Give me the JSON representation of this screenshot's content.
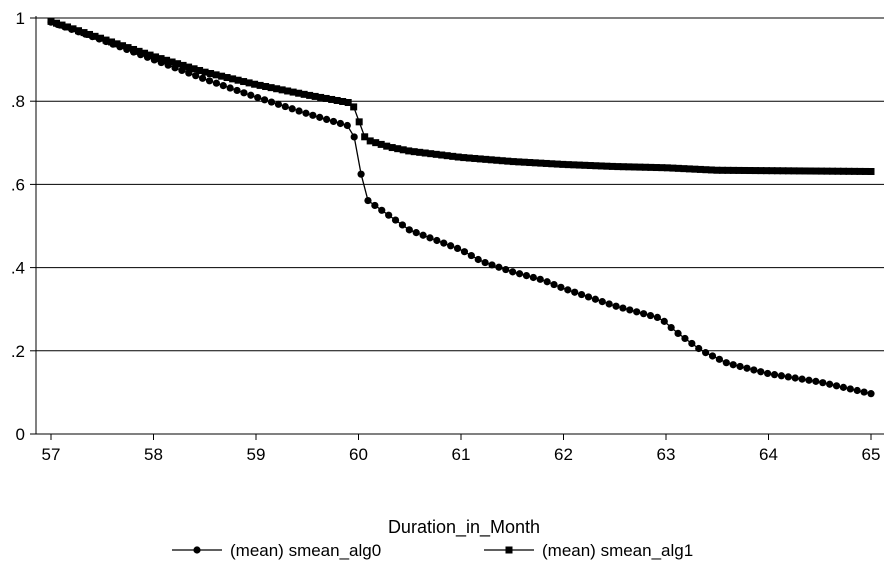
{
  "chart_data": {
    "type": "line",
    "xlabel": "Duration_in_Month",
    "ylabel": "",
    "xlim": [
      57,
      65
    ],
    "ylim": [
      0,
      1
    ],
    "xticks": [
      "57",
      "58",
      "59",
      "60",
      "61",
      "62",
      "63",
      "64",
      "65"
    ],
    "yticks": [
      "0",
      ".2",
      ".4",
      ".6",
      ".8",
      "1"
    ],
    "grid": "horizontal",
    "legend": "bottom",
    "colors": {
      "line": "#000000",
      "grid": "#000000",
      "background": "#ffffff"
    },
    "series": [
      {
        "name": "(mean) smean_alg0",
        "marker": "circle",
        "points": [
          [
            57.0,
            0.99
          ],
          [
            57.5,
            0.947
          ],
          [
            58.0,
            0.9
          ],
          [
            58.5,
            0.853
          ],
          [
            59.0,
            0.81
          ],
          [
            59.5,
            0.77
          ],
          [
            59.94,
            0.738
          ],
          [
            60.07,
            0.565
          ],
          [
            60.3,
            0.525
          ],
          [
            60.5,
            0.49
          ],
          [
            61.0,
            0.443
          ],
          [
            61.2,
            0.415
          ],
          [
            61.5,
            0.39
          ],
          [
            61.8,
            0.37
          ],
          [
            62.0,
            0.35
          ],
          [
            62.5,
            0.308
          ],
          [
            62.95,
            0.278
          ],
          [
            63.1,
            0.245
          ],
          [
            63.35,
            0.2
          ],
          [
            63.6,
            0.17
          ],
          [
            64.0,
            0.145
          ],
          [
            64.5,
            0.125
          ],
          [
            65.0,
            0.097
          ]
        ]
      },
      {
        "name": "(mean) smean_alg1",
        "marker": "square",
        "points": [
          [
            57.0,
            0.992
          ],
          [
            57.5,
            0.95
          ],
          [
            58.0,
            0.908
          ],
          [
            58.5,
            0.87
          ],
          [
            59.0,
            0.84
          ],
          [
            59.5,
            0.815
          ],
          [
            59.94,
            0.795
          ],
          [
            60.07,
            0.708
          ],
          [
            60.3,
            0.69
          ],
          [
            60.5,
            0.68
          ],
          [
            61.0,
            0.665
          ],
          [
            61.5,
            0.655
          ],
          [
            62.0,
            0.648
          ],
          [
            62.5,
            0.643
          ],
          [
            63.0,
            0.64
          ],
          [
            63.5,
            0.634
          ],
          [
            64.0,
            0.633
          ],
          [
            64.5,
            0.632
          ],
          [
            65.0,
            0.631
          ]
        ]
      }
    ]
  }
}
